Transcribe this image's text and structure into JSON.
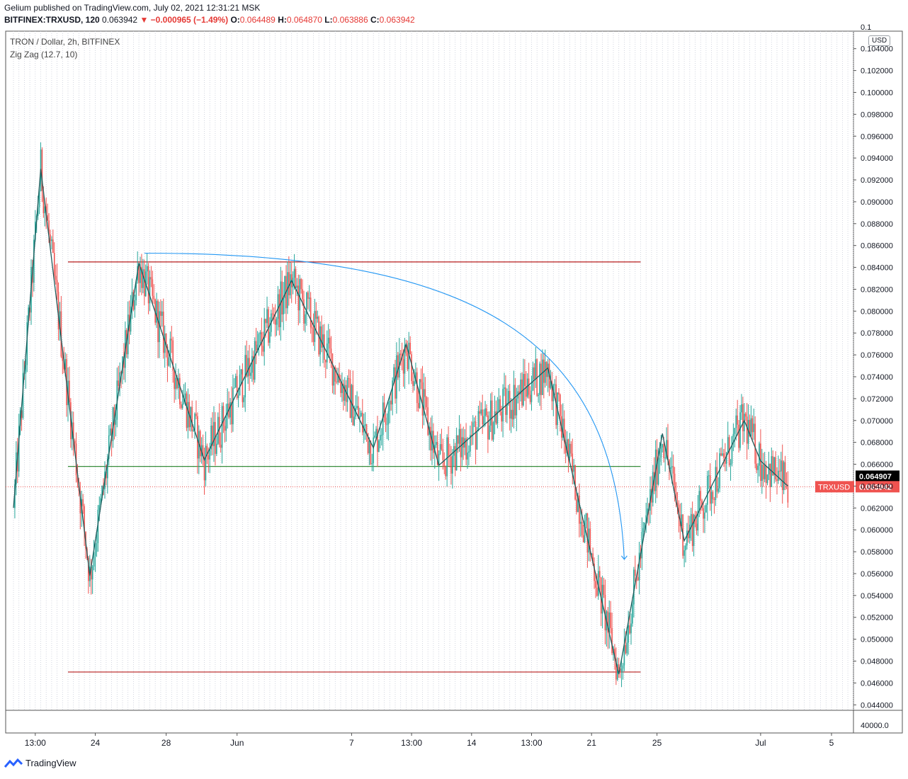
{
  "header": {
    "line1": "Gelium published on TradingView.com, July 02, 2021 12:31:21 MSK",
    "symbol": "BITFINEX:TRXUSD, 120",
    "last": "0.063942",
    "change": "▼ −0.000965 (−1.49%)",
    "o_label": "O:",
    "o": "0.064489",
    "h_label": "H:",
    "h": "0.064870",
    "l_label": "L:",
    "l": "0.063886",
    "c_label": "C:",
    "c": "0.063942"
  },
  "legend": {
    "title": "TRON / Dollar, 2h, BITFINEX",
    "indicator": "Zig Zag (12.7, 10)"
  },
  "currency_button": "USD",
  "footer": {
    "brand": "TradingView"
  },
  "colors": {
    "up": "#26a69a",
    "down": "#ef5350",
    "zigzag": "#1e5c5c",
    "resistance": "#b71c1c",
    "support": "#388e3c",
    "arc": "#2196f3",
    "price_tag": "#ef5350",
    "last_tag": "#000000"
  },
  "chart_data": {
    "type": "candlestick",
    "title": "TRON / Dollar, 2h, BITFINEX",
    "ylim": [
      0.0435,
      0.1056
    ],
    "ytick_values": [
      0.044,
      0.046,
      0.048,
      0.05,
      0.052,
      0.054,
      0.056,
      0.058,
      0.06,
      0.062,
      0.064,
      0.066,
      0.068,
      0.07,
      0.072,
      0.074,
      0.076,
      0.078,
      0.08,
      0.082,
      0.084,
      0.086,
      0.088,
      0.09,
      0.092,
      0.094,
      0.096,
      0.098,
      0.1,
      0.102,
      0.104
    ],
    "ytick_labels": [
      "0.044000",
      "0.046000",
      "0.048000",
      "0.050000",
      "0.052000",
      "0.054000",
      "0.056000",
      "0.058000",
      "0.060000",
      "0.062000",
      "0.064000",
      "0.066000",
      "0.068000",
      "0.070000",
      "0.072000",
      "0.074000",
      "0.076000",
      "0.078000",
      "0.080000",
      "0.082000",
      "0.084000",
      "0.086000",
      "0.088000",
      "0.090000",
      "0.092000",
      "0.094000",
      "0.096000",
      "0.098000",
      "0.100000",
      "0.102000",
      "0.104000"
    ],
    "top_tick_label": "0.1",
    "volume_label": "40000.0",
    "x_ticks": [
      {
        "t": 4,
        "label": "13:00"
      },
      {
        "t": 15,
        "label": "24"
      },
      {
        "t": 28,
        "label": "28"
      },
      {
        "t": 41,
        "label": "Jun"
      },
      {
        "t": 62,
        "label": "7"
      },
      {
        "t": 73,
        "label": "13:00"
      },
      {
        "t": 84,
        "label": "14"
      },
      {
        "t": 95,
        "label": "13:00"
      },
      {
        "t": 106,
        "label": "21"
      },
      {
        "t": 118,
        "label": "25"
      },
      {
        "t": 137,
        "label": "Jul"
      },
      {
        "t": 150,
        "label": "5"
      }
    ],
    "x_range": [
      0,
      155
    ],
    "zigzag": [
      {
        "t": 0,
        "v": 0.062
      },
      {
        "t": 5,
        "v": 0.093
      },
      {
        "t": 14,
        "v": 0.0558
      },
      {
        "t": 23,
        "v": 0.0844
      },
      {
        "t": 35,
        "v": 0.0664
      },
      {
        "t": 51,
        "v": 0.0828
      },
      {
        "t": 66,
        "v": 0.0675
      },
      {
        "t": 72,
        "v": 0.077
      },
      {
        "t": 78,
        "v": 0.0659
      },
      {
        "t": 98,
        "v": 0.0748
      },
      {
        "t": 111,
        "v": 0.0468
      },
      {
        "t": 119,
        "v": 0.0688
      },
      {
        "t": 123,
        "v": 0.059
      },
      {
        "t": 134,
        "v": 0.07
      },
      {
        "t": 137,
        "v": 0.0663
      },
      {
        "t": 142,
        "v": 0.064
      }
    ],
    "resistance_line": {
      "value": 0.0845,
      "t_start": 10,
      "t_end": 115
    },
    "support_line": {
      "value": 0.0658,
      "t_start": 10,
      "t_end": 115
    },
    "bottom_line": {
      "value": 0.047,
      "t_start": 10,
      "t_end": 115
    },
    "arc": {
      "t_start": 24,
      "v_start": 0.0853,
      "t_peak": 30,
      "t_end": 112,
      "v_end": 0.0573
    },
    "last_price": {
      "value": 0.063942,
      "label": "0.063942",
      "symbol": "TRXUSD"
    },
    "prev_close": {
      "value": 0.064907,
      "label": "0.064907"
    }
  }
}
